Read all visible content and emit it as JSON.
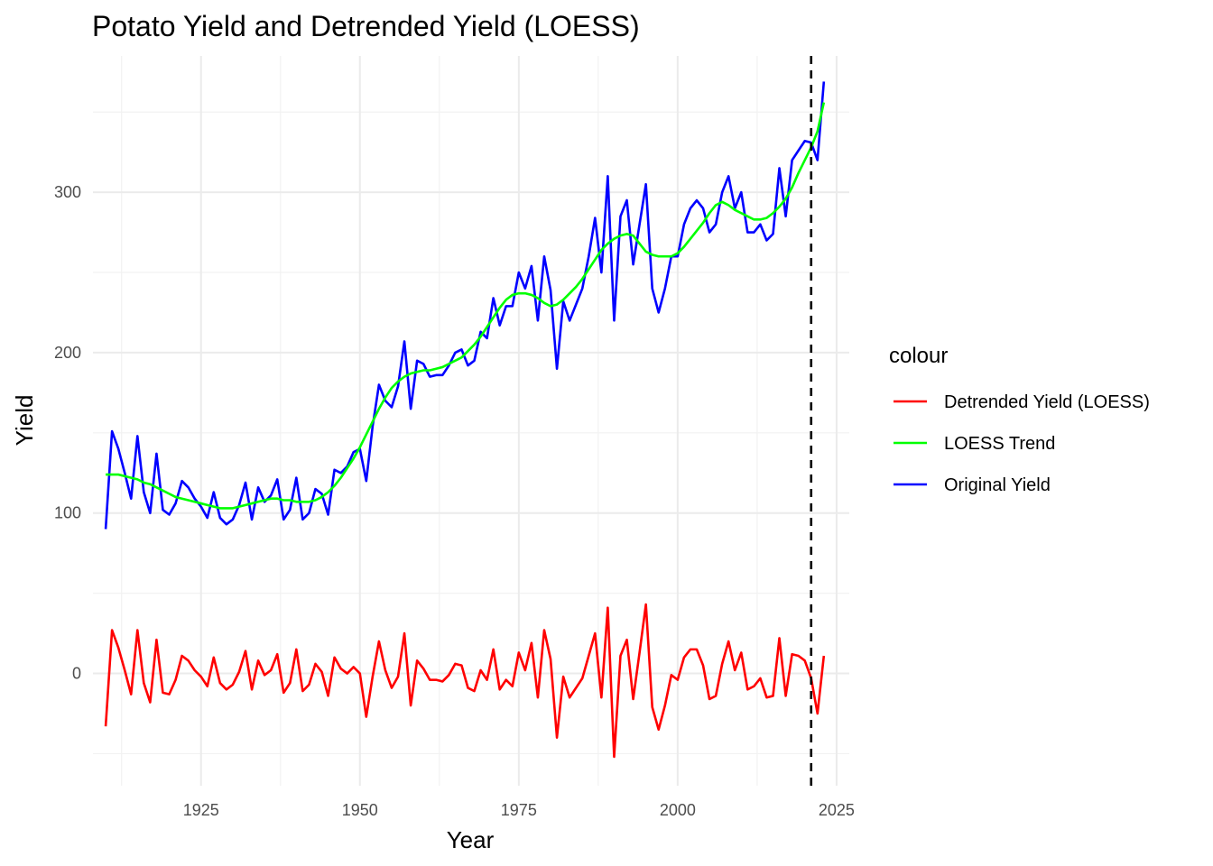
{
  "chart_data": {
    "type": "line",
    "title": "Potato Yield and Detrended Yield (LOESS)",
    "xlabel": "Year",
    "ylabel": "Yield",
    "xlim": [
      1908,
      2027
    ],
    "ylim": [
      -70,
      385
    ],
    "x_ticks": [
      1925,
      1950,
      1975,
      2000,
      2025
    ],
    "y_ticks": [
      0,
      100,
      200,
      300
    ],
    "x_minor_ticks": [
      1912.5,
      1937.5,
      1962.5,
      1987.5,
      2012.5
    ],
    "y_minor_ticks": [
      -50,
      50,
      150,
      250,
      350
    ],
    "grid": true,
    "reference_line": {
      "x": 2021,
      "style": "dashed",
      "color": "#000000"
    },
    "legend": {
      "title": "colour",
      "position": "right",
      "entries": [
        {
          "label": "Detrended Yield (LOESS)",
          "color": "#ff0000"
        },
        {
          "label": "LOESS Trend",
          "color": "#00ff00"
        },
        {
          "label": "Original Yield",
          "color": "#0000ff"
        }
      ]
    },
    "x": [
      1910,
      1911,
      1912,
      1913,
      1914,
      1915,
      1916,
      1917,
      1918,
      1919,
      1920,
      1921,
      1922,
      1923,
      1924,
      1925,
      1926,
      1927,
      1928,
      1929,
      1930,
      1931,
      1932,
      1933,
      1934,
      1935,
      1936,
      1937,
      1938,
      1939,
      1940,
      1941,
      1942,
      1943,
      1944,
      1945,
      1946,
      1947,
      1948,
      1949,
      1950,
      1951,
      1952,
      1953,
      1954,
      1955,
      1956,
      1957,
      1958,
      1959,
      1960,
      1961,
      1962,
      1963,
      1964,
      1965,
      1966,
      1967,
      1968,
      1969,
      1970,
      1971,
      1972,
      1973,
      1974,
      1975,
      1976,
      1977,
      1978,
      1979,
      1980,
      1981,
      1982,
      1983,
      1984,
      1985,
      1986,
      1987,
      1988,
      1989,
      1990,
      1991,
      1992,
      1993,
      1994,
      1995,
      1996,
      1997,
      1998,
      1999,
      2000,
      2001,
      2002,
      2003,
      2004,
      2005,
      2006,
      2007,
      2008,
      2009,
      2010,
      2011,
      2012,
      2013,
      2014,
      2015,
      2016,
      2017,
      2018,
      2019,
      2020,
      2021,
      2022,
      2023
    ],
    "series": [
      {
        "name": "Original Yield",
        "color": "#0000ff",
        "values": [
          90,
          151,
          140,
          125,
          109,
          148,
          113,
          100,
          137,
          102,
          99,
          106,
          120,
          116,
          109,
          104,
          97,
          113,
          97,
          93,
          96,
          105,
          119,
          96,
          116,
          107,
          111,
          121,
          96,
          102,
          122,
          96,
          100,
          115,
          112,
          99,
          127,
          125,
          129,
          138,
          140,
          120,
          154,
          180,
          170,
          166,
          179,
          207,
          165,
          195,
          193,
          185,
          186,
          186,
          192,
          200,
          202,
          192,
          195,
          213,
          209,
          234,
          217,
          229,
          229,
          250,
          240,
          254,
          220,
          260,
          239,
          190,
          232,
          220,
          230,
          240,
          260,
          284,
          250,
          310,
          220,
          285,
          295,
          255,
          280,
          305,
          240,
          225,
          240,
          260,
          260,
          280,
          290,
          295,
          290,
          275,
          280,
          300,
          310,
          290,
          300,
          275,
          275,
          280,
          270,
          274,
          315,
          285,
          320,
          326,
          332,
          331,
          320,
          369
        ]
      },
      {
        "name": "LOESS Trend",
        "color": "#00ff00",
        "values": [
          124,
          124,
          124,
          123,
          122,
          121,
          119,
          118,
          116,
          114,
          112,
          110,
          109,
          108,
          107,
          106,
          105,
          104,
          103,
          103,
          103,
          104,
          105,
          106,
          107,
          108,
          109,
          109,
          108,
          108,
          107,
          107,
          107,
          108,
          110,
          113,
          117,
          122,
          128,
          134,
          141,
          149,
          157,
          165,
          172,
          178,
          182,
          185,
          187,
          188,
          189,
          189,
          190,
          191,
          193,
          195,
          197,
          201,
          205,
          210,
          216,
          222,
          228,
          233,
          236,
          237,
          237,
          236,
          234,
          231,
          229,
          230,
          233,
          237,
          241,
          246,
          252,
          258,
          264,
          268,
          271,
          273,
          274,
          273,
          268,
          263,
          261,
          260,
          260,
          260,
          262,
          266,
          271,
          276,
          281,
          287,
          292,
          294,
          292,
          289,
          287,
          285,
          283,
          283,
          284,
          287,
          291,
          296,
          303,
          312,
          320,
          328,
          338,
          356
        ]
      },
      {
        "name": "Detrended Yield (LOESS)",
        "color": "#ff0000",
        "values": [
          -33,
          27,
          16,
          2,
          -13,
          27,
          -6,
          -18,
          21,
          -12,
          -13,
          -4,
          11,
          8,
          2,
          -2,
          -8,
          10,
          -6,
          -10,
          -7,
          1,
          14,
          -10,
          8,
          -1,
          2,
          12,
          -12,
          -6,
          15,
          -11,
          -7,
          6,
          1,
          -14,
          10,
          3,
          0,
          4,
          0,
          -27,
          -2,
          20,
          2,
          -9,
          -2,
          25,
          -20,
          8,
          3,
          -4,
          -4,
          -5,
          -1,
          6,
          5,
          -9,
          -11,
          2,
          -4,
          15,
          -10,
          -4,
          -8,
          13,
          2,
          19,
          -15,
          27,
          9,
          -40,
          -2,
          -15,
          -9,
          -3,
          11,
          25,
          -15,
          41,
          -52,
          11,
          21,
          -16,
          13,
          43,
          -21,
          -35,
          -20,
          -1,
          -4,
          10,
          15,
          15,
          5,
          -16,
          -14,
          6,
          20,
          2,
          13,
          -10,
          -8,
          -3,
          -15,
          -14,
          22,
          -14,
          12,
          11,
          8,
          -3,
          -25,
          11
        ]
      }
    ]
  }
}
